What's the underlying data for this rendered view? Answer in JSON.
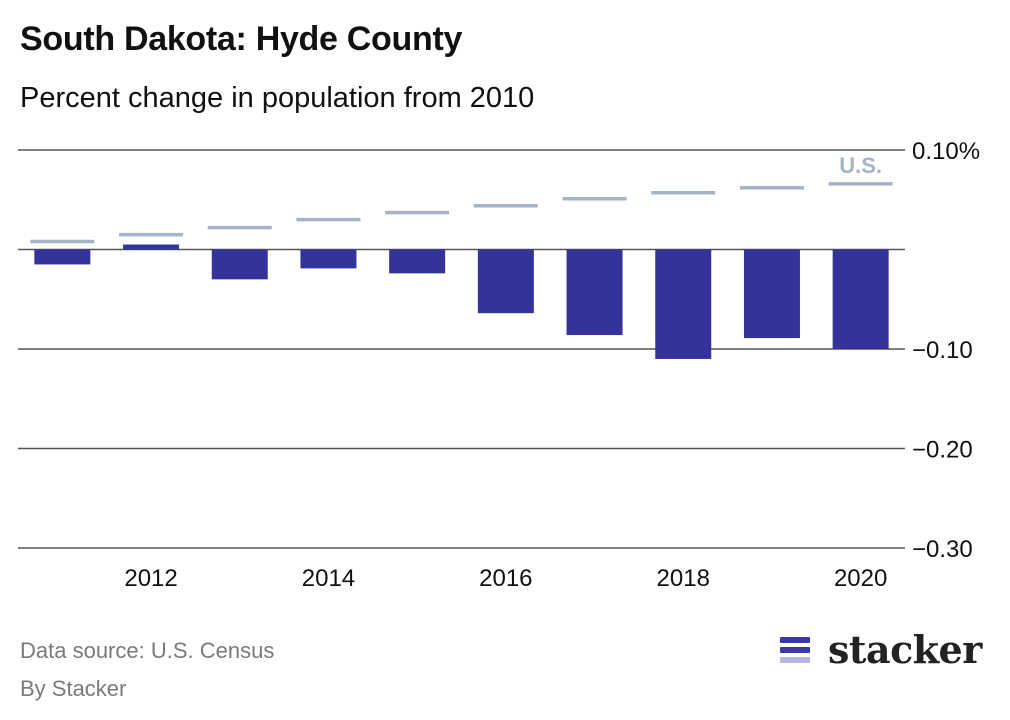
{
  "title": "South Dakota: Hyde County",
  "subtitle": "Percent change in population from 2010",
  "footer": {
    "source": "Data source: U.S. Census",
    "byline": "By Stacker"
  },
  "brand": {
    "name": "stacker",
    "icon": "stacker-logo-icon",
    "bar_colors": [
      "#3a3aa0",
      "#3a3aa0",
      "#b9b6e6"
    ]
  },
  "chart_data": {
    "type": "bar",
    "categories": [
      "2011",
      "2012",
      "2013",
      "2014",
      "2015",
      "2016",
      "2017",
      "2018",
      "2019",
      "2020"
    ],
    "x_tick_labels": [
      "",
      "2012",
      "",
      "2014",
      "",
      "2016",
      "",
      "2018",
      "",
      "2020"
    ],
    "series": [
      {
        "name": "Hyde County",
        "values": [
          -0.015,
          0.005,
          -0.03,
          -0.019,
          -0.024,
          -0.064,
          -0.086,
          -0.11,
          -0.089,
          -0.1
        ]
      },
      {
        "name": "U.S.",
        "values": [
          0.008,
          0.015,
          0.022,
          0.03,
          0.037,
          0.044,
          0.051,
          0.057,
          0.062,
          0.066
        ]
      }
    ],
    "series_label": "U.S.",
    "ylim": [
      -0.3,
      0.1
    ],
    "y_ticks": [
      0.1,
      0.0,
      -0.1,
      -0.2,
      -0.3
    ],
    "y_tick_labels": [
      "0.10%",
      "",
      "−0.10",
      "−0.20",
      "−0.30"
    ],
    "colors": {
      "bar": "#33339a",
      "us_line": "#a3b4c8",
      "grid": "#555555",
      "tick_text": "#111111"
    },
    "grid": true
  }
}
